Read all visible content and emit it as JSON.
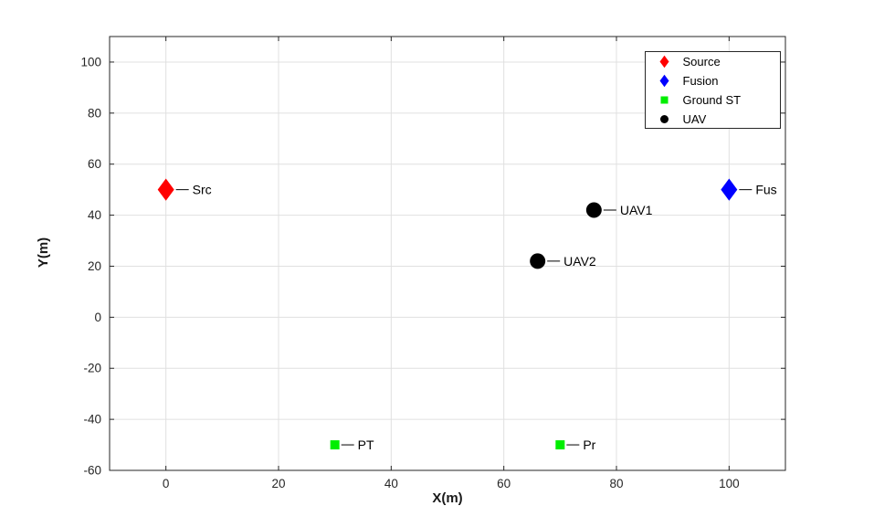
{
  "figure": {
    "background": "#ffffff",
    "axis_color": "#262626",
    "grid_color": "#e0e0e0",
    "tick_label_color": "#262626"
  },
  "chart_data": {
    "type": "scatter",
    "title": "",
    "xlabel": "X(m)",
    "ylabel": "Y(m)",
    "xlim": [
      -10,
      110
    ],
    "ylim": [
      -60,
      110
    ],
    "xticks": [
      0,
      20,
      40,
      60,
      80,
      100
    ],
    "yticks": [
      -60,
      -40,
      -20,
      0,
      20,
      40,
      60,
      80,
      100
    ],
    "grid": true,
    "legend": {
      "position": "top-right",
      "entries": [
        {
          "label": "Source",
          "marker": "diamond",
          "color": "#ff0000"
        },
        {
          "label": "Fusion",
          "marker": "diamond",
          "color": "#0000ff"
        },
        {
          "label": "Ground ST",
          "marker": "square",
          "color": "#00ee00"
        },
        {
          "label": "UAV",
          "marker": "circle",
          "color": "#000000"
        }
      ]
    },
    "points": [
      {
        "x": 0,
        "y": 50,
        "marker": "diamond",
        "color": "#ff0000",
        "size": 9,
        "label": "Src"
      },
      {
        "x": 100,
        "y": 50,
        "marker": "diamond",
        "color": "#0000ff",
        "size": 9,
        "label": "Fus"
      },
      {
        "x": 76,
        "y": 42,
        "marker": "circle",
        "color": "#000000",
        "size": 8.5,
        "label": "UAV1"
      },
      {
        "x": 66,
        "y": 22,
        "marker": "circle",
        "color": "#000000",
        "size": 8.5,
        "label": "UAV2"
      },
      {
        "x": 30,
        "y": -50,
        "marker": "square",
        "color": "#00ee00",
        "size": 5,
        "label": "PT"
      },
      {
        "x": 70,
        "y": -50,
        "marker": "square",
        "color": "#00ee00",
        "size": 5,
        "label": "Pr"
      }
    ]
  }
}
